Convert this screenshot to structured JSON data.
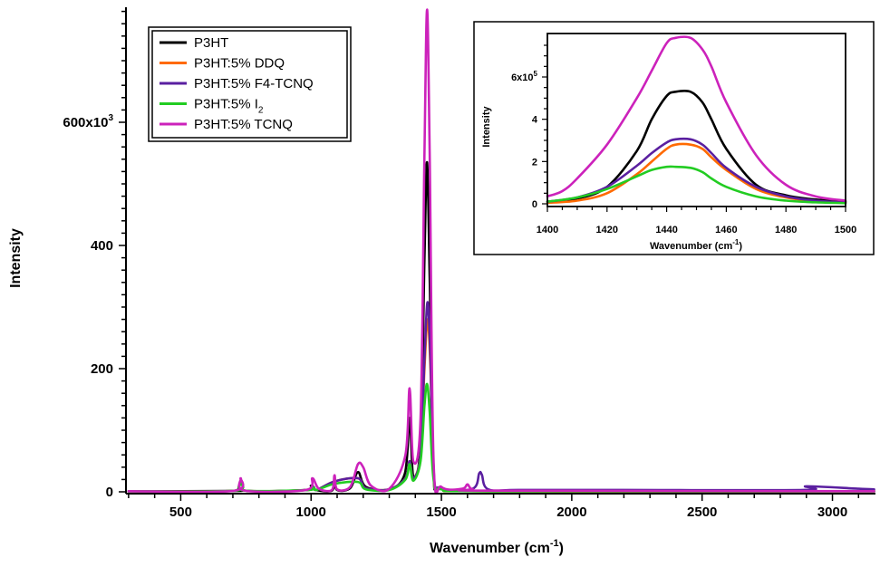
{
  "chart_data": [
    {
      "type": "line",
      "xlabel": "Wavenumber (cm",
      "xlabel_sup": "-1",
      "xlabel_tail": ")",
      "ylabel": "Intensity",
      "xlim": [
        290,
        3165
      ],
      "ylim": [
        0,
        780000
      ],
      "x_ticks": [
        500,
        1000,
        1500,
        2000,
        2500,
        3000
      ],
      "x_tick_labels": [
        "500",
        "1000",
        "1500",
        "2000",
        "2500",
        "3000"
      ],
      "y_ticks": [
        0,
        200000,
        400000,
        600000
      ],
      "y_tick_labels": [
        "0",
        "200",
        "400",
        "600x10"
      ],
      "y_exponent_label": "3",
      "grid": false,
      "legend": {
        "placement": "top-left",
        "entries": [
          {
            "text": "P3HT",
            "sub": ""
          },
          {
            "text": "P3HT:5% DDQ",
            "sub": ""
          },
          {
            "text": "P3HT:5% F4-TCNQ",
            "sub": ""
          },
          {
            "text": "P3HT:5% I",
            "sub": "2"
          },
          {
            "text": "P3HT:5% TCNQ",
            "sub": ""
          }
        ]
      },
      "series": [
        {
          "color": "#000000",
          "x": [
            300,
            700,
            720,
            730,
            745,
            980,
            1000,
            1020,
            1080,
            1090,
            1100,
            1150,
            1180,
            1210,
            1300,
            1360,
            1378,
            1392,
            1420,
            1435,
            1445,
            1455,
            1470,
            1500,
            1700,
            3160
          ],
          "y": [
            1000,
            1500,
            4000,
            17000,
            2000,
            3000,
            10000,
            3000,
            2000,
            20000,
            3000,
            6000,
            32000,
            8000,
            4000,
            30000,
            120000,
            25000,
            80000,
            380000,
            535000,
            350000,
            40000,
            6000,
            1000,
            1000
          ]
        },
        {
          "color": "#ff6a00",
          "x": [
            300,
            700,
            730,
            745,
            990,
            1005,
            1020,
            1090,
            1180,
            1210,
            1300,
            1362,
            1378,
            1392,
            1420,
            1435,
            1447,
            1458,
            1470,
            1500,
            1700,
            3160
          ],
          "y": [
            1000,
            1500,
            15000,
            2000,
            3000,
            10000,
            3000,
            17000,
            22000,
            6000,
            4000,
            22000,
            50000,
            22000,
            60000,
            200000,
            280000,
            200000,
            30000,
            5000,
            1000,
            1000
          ]
        },
        {
          "color": "#5a1fa0",
          "x": [
            300,
            700,
            730,
            745,
            990,
            1005,
            1020,
            1090,
            1180,
            1210,
            1300,
            1362,
            1378,
            1392,
            1420,
            1435,
            1447,
            1458,
            1470,
            1500,
            1620,
            1645,
            1655,
            1680,
            1800,
            2200,
            2890,
            2900,
            3100,
            3160
          ],
          "y": [
            1000,
            1500,
            15000,
            2000,
            3000,
            10000,
            3000,
            17000,
            22000,
            6000,
            4000,
            22000,
            50000,
            22000,
            60000,
            215000,
            308000,
            215000,
            30000,
            6000,
            5000,
            30000,
            28000,
            4000,
            3000,
            3000,
            3000,
            9000,
            5000,
            4000
          ]
        },
        {
          "color": "#22cc22",
          "x": [
            300,
            700,
            730,
            745,
            990,
            1005,
            1020,
            1090,
            1180,
            1210,
            1300,
            1362,
            1378,
            1392,
            1420,
            1435,
            1445,
            1455,
            1470,
            1500,
            1700,
            3160
          ],
          "y": [
            1000,
            1500,
            14000,
            2000,
            3000,
            8000,
            3000,
            13000,
            16000,
            4000,
            3000,
            20000,
            45000,
            18000,
            50000,
            140000,
            175000,
            130000,
            20000,
            4000,
            1000,
            1000
          ]
        },
        {
          "color": "#cc22bb",
          "x": [
            300,
            700,
            730,
            745,
            980,
            1005,
            1030,
            1080,
            1090,
            1100,
            1150,
            1180,
            1200,
            1230,
            1300,
            1362,
            1378,
            1392,
            1420,
            1435,
            1445,
            1455,
            1470,
            1500,
            1580,
            1600,
            1620,
            1700,
            3160
          ],
          "y": [
            1000,
            1500,
            22000,
            2000,
            3000,
            22000,
            5000,
            3000,
            27000,
            4000,
            8000,
            45000,
            40000,
            10000,
            5000,
            60000,
            168000,
            50000,
            120000,
            550000,
            783000,
            550000,
            50000,
            8000,
            5000,
            12000,
            4000,
            2000,
            1000
          ]
        }
      ]
    },
    {
      "type": "line",
      "xlabel": "Wavenumber (cm",
      "xlabel_sup": "-1",
      "xlabel_tail": ")",
      "ylabel": "Intensity",
      "xlim": [
        1400,
        1500
      ],
      "ylim": [
        0,
        8
      ],
      "x_ticks": [
        1400,
        1420,
        1440,
        1460,
        1480,
        1500
      ],
      "x_tick_labels": [
        "1400",
        "1420",
        "1440",
        "1460",
        "1480",
        "1500"
      ],
      "y_ticks": [
        0,
        2,
        4,
        6
      ],
      "y_tick_labels": [
        "0",
        "2",
        "4",
        "6x10"
      ],
      "y_exponent_label": "5",
      "grid": false,
      "series": [
        {
          "color": "#000000",
          "x": [
            1400,
            1410,
            1420,
            1430,
            1435,
            1440,
            1443,
            1448,
            1452,
            1455,
            1460,
            1470,
            1480,
            1490,
            1500
          ],
          "y": [
            0.1,
            0.25,
            0.8,
            2.5,
            4.0,
            5.1,
            5.3,
            5.3,
            4.8,
            4.0,
            2.6,
            0.9,
            0.4,
            0.2,
            0.1
          ]
        },
        {
          "color": "#ff6a00",
          "x": [
            1400,
            1410,
            1420,
            1430,
            1435,
            1440,
            1443,
            1448,
            1452,
            1455,
            1460,
            1470,
            1480,
            1490,
            1500
          ],
          "y": [
            0.05,
            0.15,
            0.5,
            1.4,
            2.0,
            2.6,
            2.8,
            2.8,
            2.6,
            2.2,
            1.6,
            0.7,
            0.3,
            0.12,
            0.05
          ]
        },
        {
          "color": "#5a1fa0",
          "x": [
            1400,
            1410,
            1420,
            1430,
            1435,
            1440,
            1443,
            1448,
            1452,
            1455,
            1460,
            1470,
            1480,
            1490,
            1500
          ],
          "y": [
            0.1,
            0.3,
            0.8,
            1.8,
            2.4,
            2.9,
            3.05,
            3.05,
            2.8,
            2.4,
            1.7,
            0.8,
            0.35,
            0.15,
            0.05
          ]
        },
        {
          "color": "#22cc22",
          "x": [
            1400,
            1410,
            1420,
            1430,
            1435,
            1440,
            1443,
            1448,
            1452,
            1455,
            1460,
            1470,
            1480,
            1490,
            1500
          ],
          "y": [
            0.1,
            0.3,
            0.7,
            1.3,
            1.6,
            1.75,
            1.75,
            1.7,
            1.5,
            1.2,
            0.8,
            0.35,
            0.15,
            0.07,
            0.03
          ]
        },
        {
          "color": "#cc22bb",
          "x": [
            1400,
            1405,
            1410,
            1420,
            1430,
            1435,
            1440,
            1443,
            1448,
            1452,
            1455,
            1460,
            1470,
            1480,
            1490,
            1500
          ],
          "y": [
            0.35,
            0.6,
            1.2,
            2.8,
            5.0,
            6.3,
            7.6,
            7.85,
            7.85,
            7.3,
            6.5,
            4.8,
            2.3,
            0.9,
            0.35,
            0.15
          ]
        }
      ]
    }
  ]
}
